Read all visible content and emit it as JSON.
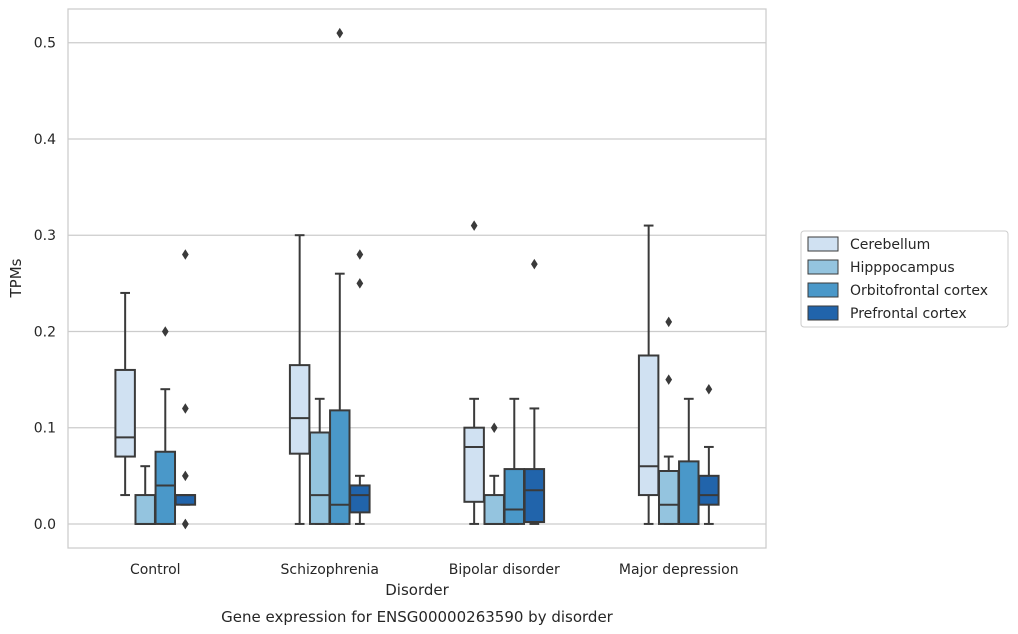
{
  "chart_data": {
    "type": "boxplot",
    "caption": "Gene expression for ENSG00000263590 by disorder",
    "xlabel": "Disorder",
    "ylabel": "TPMs",
    "categories": [
      "Control",
      "Schizophrenia",
      "Bipolar disorder",
      "Major depression"
    ],
    "ylim": [
      -0.025,
      0.535
    ],
    "yticks": [
      0.0,
      0.1,
      0.2,
      0.3,
      0.4,
      0.5
    ],
    "ytick_labels": [
      "0.0",
      "0.1",
      "0.2",
      "0.3",
      "0.4",
      "0.5"
    ],
    "grid": true,
    "legend_position": "right",
    "series": [
      {
        "name": "Cerebellum",
        "color": "#d0e1f2",
        "boxes": [
          {
            "whislo": 0.03,
            "q1": 0.07,
            "med": 0.09,
            "q3": 0.16,
            "whishi": 0.24,
            "fliers": []
          },
          {
            "whislo": 0.0,
            "q1": 0.073,
            "med": 0.11,
            "q3": 0.165,
            "whishi": 0.3,
            "fliers": []
          },
          {
            "whislo": 0.0,
            "q1": 0.023,
            "med": 0.08,
            "q3": 0.1,
            "whishi": 0.13,
            "fliers": [
              0.31
            ]
          },
          {
            "whislo": 0.0,
            "q1": 0.03,
            "med": 0.06,
            "q3": 0.175,
            "whishi": 0.31,
            "fliers": []
          }
        ]
      },
      {
        "name": "Hipppocampus",
        "color": "#94c4df",
        "boxes": [
          {
            "whislo": 0.0,
            "q1": 0.0,
            "med": 0.0,
            "q3": 0.03,
            "whishi": 0.06,
            "fliers": []
          },
          {
            "whislo": 0.0,
            "q1": 0.0,
            "med": 0.03,
            "q3": 0.095,
            "whishi": 0.13,
            "fliers": []
          },
          {
            "whislo": 0.0,
            "q1": 0.0,
            "med": 0.0,
            "q3": 0.03,
            "whishi": 0.05,
            "fliers": [
              0.1
            ]
          },
          {
            "whislo": 0.0,
            "q1": 0.0,
            "med": 0.02,
            "q3": 0.055,
            "whishi": 0.07,
            "fliers": [
              0.15,
              0.21
            ]
          }
        ]
      },
      {
        "name": "Orbitofrontal cortex",
        "color": "#4a98c9",
        "boxes": [
          {
            "whislo": 0.0,
            "q1": 0.0,
            "med": 0.04,
            "q3": 0.075,
            "whishi": 0.14,
            "fliers": [
              0.2
            ]
          },
          {
            "whislo": 0.0,
            "q1": 0.0,
            "med": 0.02,
            "q3": 0.118,
            "whishi": 0.26,
            "fliers": [
              0.51
            ]
          },
          {
            "whislo": 0.0,
            "q1": 0.0,
            "med": 0.015,
            "q3": 0.057,
            "whishi": 0.13,
            "fliers": []
          },
          {
            "whislo": 0.0,
            "q1": 0.0,
            "med": 0.0,
            "q3": 0.065,
            "whishi": 0.13,
            "fliers": []
          }
        ]
      },
      {
        "name": "Prefrontal cortex",
        "color": "#2164ab",
        "boxes": [
          {
            "whislo": 0.02,
            "q1": 0.02,
            "med": 0.03,
            "q3": 0.03,
            "whishi": 0.03,
            "fliers": [
              0.0,
              0.0,
              0.05,
              0.12,
              0.28
            ]
          },
          {
            "whislo": 0.0,
            "q1": 0.012,
            "med": 0.03,
            "q3": 0.04,
            "whishi": 0.05,
            "fliers": [
              0.25,
              0.28
            ]
          },
          {
            "whislo": 0.0,
            "q1": 0.002,
            "med": 0.035,
            "q3": 0.057,
            "whishi": 0.12,
            "fliers": [
              0.27
            ]
          },
          {
            "whislo": 0.0,
            "q1": 0.02,
            "med": 0.03,
            "q3": 0.05,
            "whishi": 0.08,
            "fliers": [
              0.14
            ]
          }
        ]
      }
    ]
  }
}
